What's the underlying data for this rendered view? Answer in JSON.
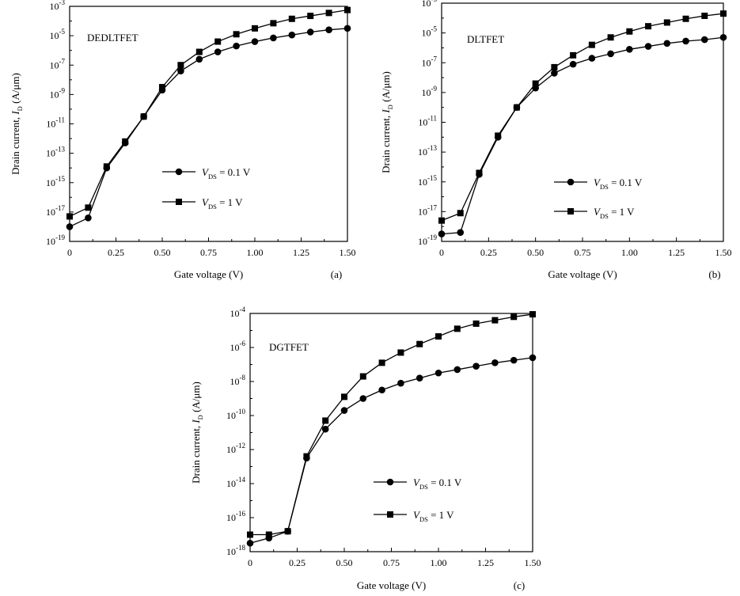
{
  "chart_data": [
    {
      "type": "line",
      "panel_label": "(a)",
      "title": "DEDLTFET",
      "xlabel": "Gate voltage (V)",
      "ylabel": {
        "pre": "Drain current, ",
        "var": "I",
        "sub": "D",
        "post": " (A/μm)"
      },
      "yscale": "log",
      "xlim": [
        0,
        1.5
      ],
      "ylim_exp": [
        -19,
        -3
      ],
      "x_ticks": [
        "0",
        "0.25",
        "0.50",
        "0.75",
        "1.00",
        "1.25",
        "1.50"
      ],
      "y_tick_exps": [
        "-3",
        "-5",
        "-7",
        "-9",
        "-11",
        "-13",
        "-15",
        "-17",
        "-19"
      ],
      "grid": false,
      "legend": [
        {
          "var": "V",
          "sub": "DS",
          "rest": " = 0.1 V",
          "marker": "circle"
        },
        {
          "var": "V",
          "sub": "DS",
          "rest": " = 1 V",
          "marker": "square"
        }
      ],
      "x": [
        0,
        0.1,
        0.2,
        0.3,
        0.4,
        0.5,
        0.6,
        0.7,
        0.8,
        0.9,
        1.0,
        1.1,
        1.2,
        1.3,
        1.4,
        1.5
      ],
      "series": [
        {
          "marker": "circle",
          "log10_values": [
            -18.0,
            -17.4,
            -14.0,
            -12.3,
            -10.5,
            -8.7,
            -7.4,
            -6.6,
            -6.1,
            -5.7,
            -5.4,
            -5.15,
            -4.95,
            -4.75,
            -4.6,
            -4.5
          ]
        },
        {
          "marker": "square",
          "log10_values": [
            -17.3,
            -16.7,
            -13.9,
            -12.2,
            -10.5,
            -8.5,
            -7.0,
            -6.1,
            -5.4,
            -4.9,
            -4.5,
            -4.15,
            -3.85,
            -3.65,
            -3.45,
            -3.25
          ]
        }
      ]
    },
    {
      "type": "line",
      "panel_label": "(b)",
      "title": "DLTFET",
      "xlabel": "Gate voltage (V)",
      "ylabel": {
        "pre": "Drain current, ",
        "var": "I",
        "sub": "D",
        "post": " (A/μm)"
      },
      "yscale": "log",
      "xlim": [
        0,
        1.5
      ],
      "ylim_exp": [
        -19,
        -3
      ],
      "x_ticks": [
        "0",
        "0.25",
        "0.50",
        "0.75",
        "1.00",
        "1.25",
        "1.50"
      ],
      "y_tick_exps": [
        "-3",
        "-5",
        "-7",
        "-9",
        "-11",
        "-13",
        "-15",
        "-17",
        "-19"
      ],
      "grid": false,
      "legend": [
        {
          "var": "V",
          "sub": "DS",
          "rest": " = 0.1 V",
          "marker": "circle"
        },
        {
          "var": "V",
          "sub": "DS",
          "rest": " = 1 V",
          "marker": "square"
        }
      ],
      "x": [
        0,
        0.1,
        0.2,
        0.3,
        0.4,
        0.5,
        0.6,
        0.7,
        0.8,
        0.9,
        1.0,
        1.1,
        1.2,
        1.3,
        1.4,
        1.5
      ],
      "series": [
        {
          "marker": "circle",
          "log10_values": [
            -18.5,
            -18.4,
            -14.5,
            -12.0,
            -10.0,
            -8.7,
            -7.7,
            -7.1,
            -6.7,
            -6.4,
            -6.1,
            -5.9,
            -5.7,
            -5.55,
            -5.45,
            -5.3
          ]
        },
        {
          "marker": "square",
          "log10_values": [
            -17.6,
            -17.1,
            -14.4,
            -11.9,
            -10.0,
            -8.4,
            -7.3,
            -6.5,
            -5.8,
            -5.3,
            -4.9,
            -4.55,
            -4.3,
            -4.05,
            -3.85,
            -3.7
          ]
        }
      ]
    },
    {
      "type": "line",
      "panel_label": "(c)",
      "title": "DGTFET",
      "xlabel": "Gate voltage (V)",
      "ylabel": {
        "pre": "Drain current, ",
        "var": "I",
        "sub": "D",
        "post": " (A/μm)"
      },
      "yscale": "log",
      "xlim": [
        0,
        1.5
      ],
      "ylim_exp": [
        -18,
        -4
      ],
      "x_ticks": [
        "0",
        "0.25",
        "0.50",
        "0.75",
        "1.00",
        "1.25",
        "1.50"
      ],
      "y_tick_exps": [
        "-4",
        "-6",
        "-8",
        "-10",
        "-12",
        "-14",
        "-16",
        "-18"
      ],
      "grid": false,
      "legend": [
        {
          "var": "V",
          "sub": "DS",
          "rest": " = 0.1 V",
          "marker": "circle"
        },
        {
          "var": "V",
          "sub": "DS",
          "rest": " = 1 V",
          "marker": "square"
        }
      ],
      "x": [
        0,
        0.1,
        0.2,
        0.3,
        0.4,
        0.5,
        0.6,
        0.7,
        0.8,
        0.9,
        1.0,
        1.1,
        1.2,
        1.3,
        1.4,
        1.5
      ],
      "series": [
        {
          "marker": "circle",
          "log10_values": [
            -17.5,
            -17.2,
            -16.8,
            -12.5,
            -10.8,
            -9.7,
            -9.0,
            -8.5,
            -8.1,
            -7.8,
            -7.5,
            -7.3,
            -7.1,
            -6.9,
            -6.75,
            -6.6
          ]
        },
        {
          "marker": "square",
          "log10_values": [
            -17.0,
            -17.0,
            -16.8,
            -12.4,
            -10.3,
            -8.9,
            -7.7,
            -6.9,
            -6.3,
            -5.8,
            -5.35,
            -4.9,
            -4.6,
            -4.4,
            -4.2,
            -4.05
          ]
        }
      ]
    }
  ]
}
